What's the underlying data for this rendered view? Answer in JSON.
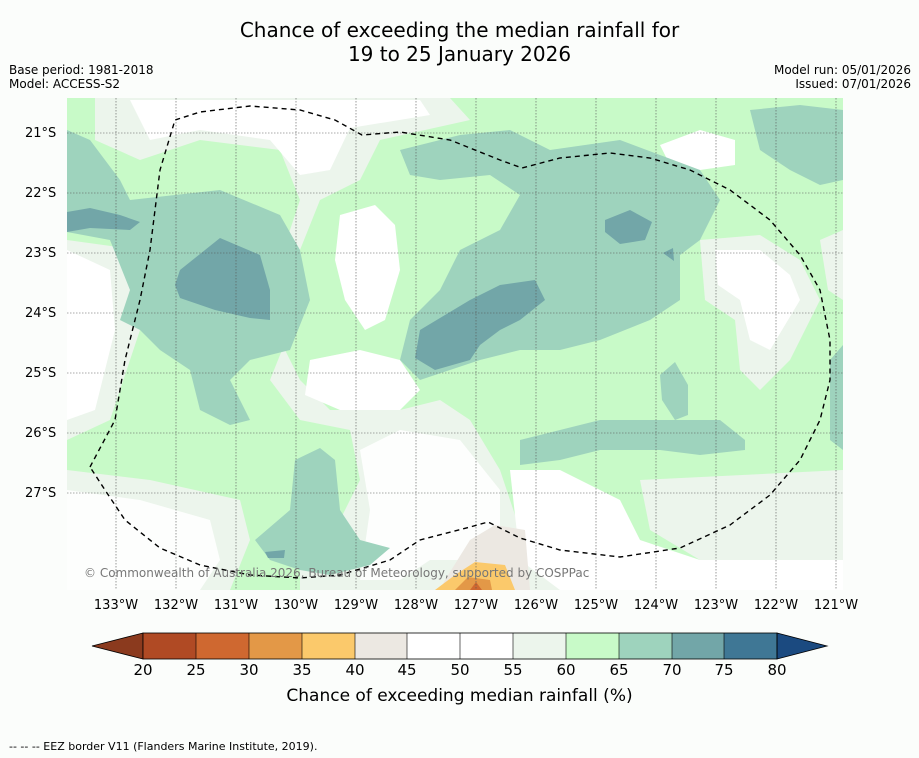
{
  "title": {
    "line1": "Chance of exceeding the median rainfall for",
    "line2": "19 to 25 January 2026"
  },
  "meta_left": {
    "base_period": "Base period: 1981-2018",
    "model": "Model: ACCESS-S2"
  },
  "meta_right": {
    "model_run": "Model run: 05/01/2026",
    "issued": "Issued: 07/01/2026"
  },
  "map": {
    "lat_labels": [
      "21°S",
      "22°S",
      "23°S",
      "24°S",
      "25°S",
      "26°S",
      "27°S"
    ],
    "lon_labels": [
      "133°W",
      "132°W",
      "131°W",
      "130°W",
      "129°W",
      "128°W",
      "127°W",
      "126°W",
      "125°W",
      "124°W",
      "123°W",
      "122°W",
      "121°W"
    ],
    "copyright": "© Commonwealth of Australia 2026, Bureau of Meteorology, supported by COSPPac"
  },
  "colorbar": {
    "levels": [
      "20",
      "25",
      "30",
      "35",
      "40",
      "45",
      "50",
      "55",
      "60",
      "65",
      "70",
      "75",
      "80"
    ],
    "colors": [
      "#8b3a1e",
      "#b04a24",
      "#cf6830",
      "#e39847",
      "#fbc96b",
      "#ece8e2",
      "#ffffff",
      "#ffffff",
      "#ecf5ec",
      "#c8fac8",
      "#9ed3bd",
      "#72a6a8",
      "#3f7795",
      "#1b4a80"
    ],
    "title": "Chance of exceeding median rainfall (%)"
  },
  "footer": "-- -- -- EEZ border V11 (Flanders Marine Institute, 2019)."
}
